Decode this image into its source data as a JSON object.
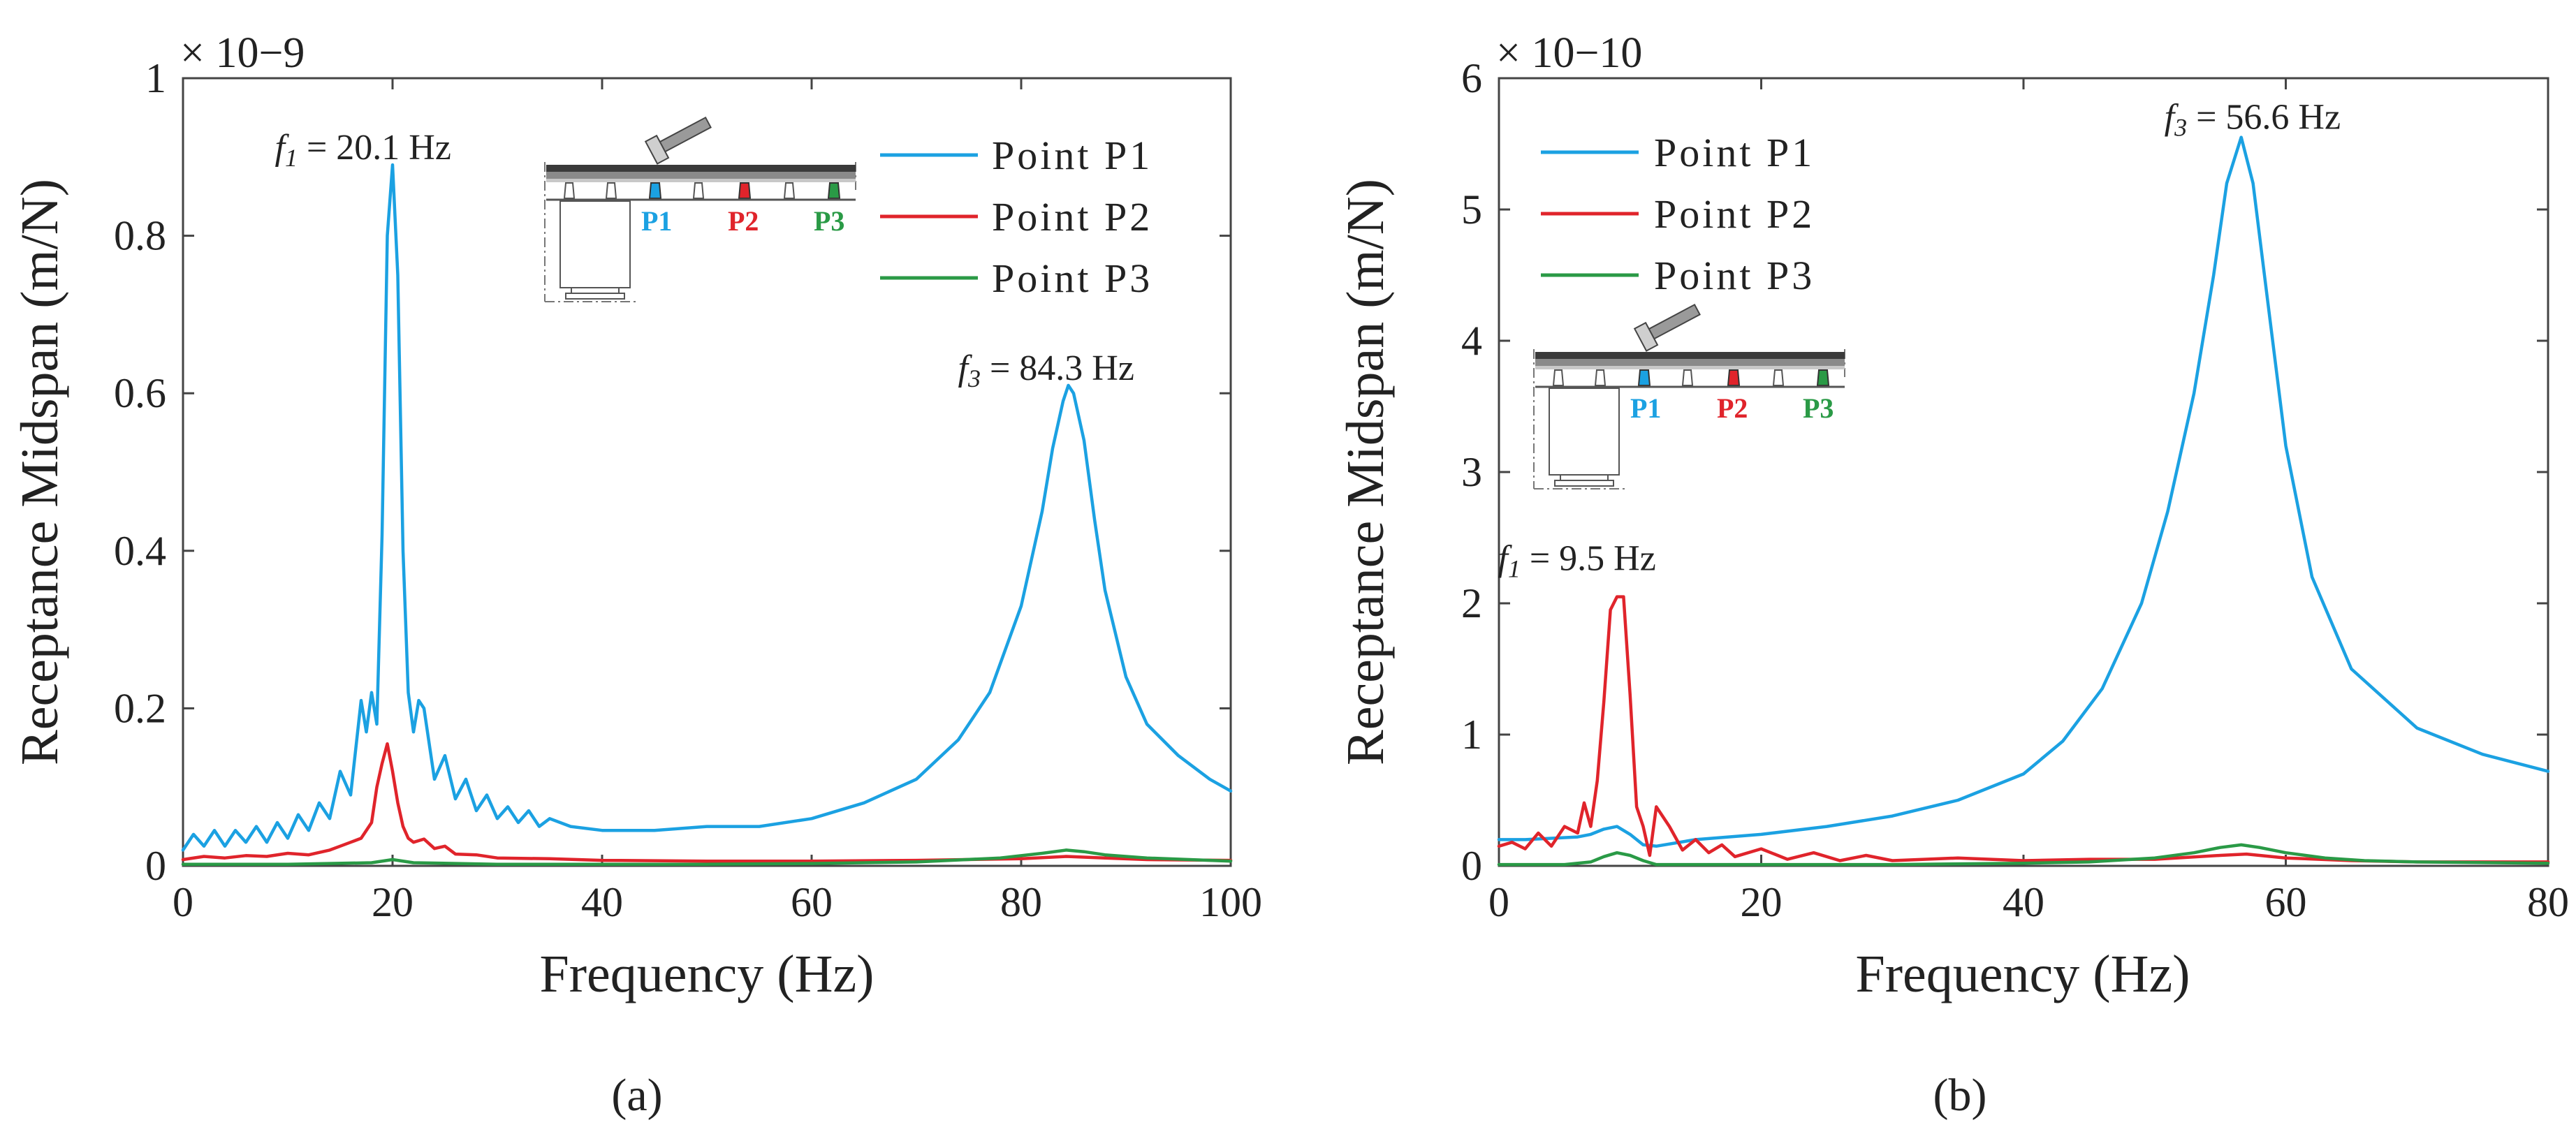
{
  "figure": {
    "panel_labels": [
      "(a)",
      "(b)"
    ]
  },
  "chart_data": [
    {
      "type": "line",
      "panel": "(a)",
      "xlabel": "Frequency (Hz)",
      "ylabel": "Receptance Midspan (m/N)",
      "scale_label": "× 10−9",
      "xlim": [
        0,
        100
      ],
      "ylim": [
        0,
        1
      ],
      "xticks": [
        0,
        20,
        40,
        60,
        80,
        100
      ],
      "yticks": [
        0,
        0.2,
        0.4,
        0.6,
        0.8,
        1
      ],
      "ytick_labels": [
        "0",
        "0.2",
        "0.4",
        "0.6",
        "0.8",
        "1"
      ],
      "legend_position": "top-right",
      "annotations": [
        {
          "symbol": "f",
          "sub": "1",
          "text": " = 20.1 Hz",
          "x": 20.1,
          "y": 0.89
        },
        {
          "symbol": "f",
          "sub": "3",
          "text": " = 84.3 Hz",
          "x": 84.3,
          "y": 0.61
        }
      ],
      "inset_labels": [
        "P1",
        "P2",
        "P3"
      ],
      "series": [
        {
          "name": "Point P1",
          "color": "#1ba1e2",
          "x": [
            0,
            1,
            2,
            3,
            4,
            5,
            6,
            7,
            8,
            9,
            10,
            11,
            12,
            13,
            14,
            15,
            16,
            17,
            17.5,
            18,
            18.5,
            19,
            19.5,
            20,
            20.5,
            21,
            21.5,
            22,
            22.5,
            23,
            24,
            25,
            26,
            27,
            28,
            29,
            30,
            31,
            32,
            33,
            34,
            35,
            37,
            40,
            45,
            50,
            55,
            60,
            65,
            70,
            74,
            77,
            80,
            82,
            83,
            84,
            84.5,
            85,
            86,
            87,
            88,
            90,
            92,
            95,
            98,
            100
          ],
          "y": [
            0.02,
            0.04,
            0.025,
            0.045,
            0.025,
            0.045,
            0.03,
            0.05,
            0.03,
            0.055,
            0.035,
            0.065,
            0.045,
            0.08,
            0.06,
            0.12,
            0.09,
            0.21,
            0.17,
            0.22,
            0.18,
            0.42,
            0.8,
            0.89,
            0.75,
            0.4,
            0.22,
            0.17,
            0.21,
            0.2,
            0.11,
            0.14,
            0.085,
            0.11,
            0.07,
            0.09,
            0.06,
            0.075,
            0.055,
            0.07,
            0.05,
            0.06,
            0.05,
            0.045,
            0.045,
            0.05,
            0.05,
            0.06,
            0.08,
            0.11,
            0.16,
            0.22,
            0.33,
            0.45,
            0.53,
            0.59,
            0.61,
            0.6,
            0.54,
            0.44,
            0.35,
            0.24,
            0.18,
            0.14,
            0.11,
            0.095
          ]
        },
        {
          "name": "Point P2",
          "color": "#e0242b",
          "x": [
            0,
            2,
            4,
            6,
            8,
            10,
            12,
            14,
            15,
            16,
            17,
            18,
            18.5,
            19,
            19.5,
            20,
            20.5,
            21,
            21.5,
            22,
            23,
            24,
            25,
            26,
            28,
            30,
            35,
            40,
            50,
            60,
            70,
            80,
            84.3,
            88,
            92,
            100
          ],
          "y": [
            0.008,
            0.012,
            0.01,
            0.013,
            0.012,
            0.016,
            0.014,
            0.02,
            0.025,
            0.03,
            0.035,
            0.055,
            0.1,
            0.13,
            0.155,
            0.12,
            0.08,
            0.05,
            0.035,
            0.03,
            0.034,
            0.022,
            0.025,
            0.015,
            0.014,
            0.01,
            0.009,
            0.007,
            0.006,
            0.006,
            0.007,
            0.009,
            0.012,
            0.01,
            0.008,
            0.007
          ]
        },
        {
          "name": "Point P3",
          "color": "#2a9a46",
          "x": [
            0,
            10,
            18,
            20,
            22,
            30,
            40,
            50,
            60,
            70,
            78,
            82,
            84.3,
            86,
            88,
            92,
            100
          ],
          "y": [
            0.002,
            0.002,
            0.004,
            0.008,
            0.004,
            0.002,
            0.002,
            0.002,
            0.003,
            0.005,
            0.01,
            0.016,
            0.02,
            0.018,
            0.014,
            0.01,
            0.006
          ]
        }
      ]
    },
    {
      "type": "line",
      "panel": "(b)",
      "xlabel": "Frequency (Hz)",
      "ylabel": "Receptance Midspan (m/N)",
      "scale_label": "× 10−10",
      "xlim": [
        0,
        80
      ],
      "ylim": [
        0,
        6
      ],
      "xticks": [
        0,
        20,
        40,
        60,
        80
      ],
      "yticks": [
        0,
        1,
        2,
        3,
        4,
        5,
        6
      ],
      "ytick_labels": [
        "0",
        "1",
        "2",
        "3",
        "4",
        "5",
        "6"
      ],
      "legend_position": "top-left",
      "annotations": [
        {
          "symbol": "f",
          "sub": "1",
          "text": " = 9.5 Hz",
          "x": 9.5,
          "y": 2.05
        },
        {
          "symbol": "f",
          "sub": "3",
          "text": " = 56.6 Hz",
          "x": 56.6,
          "y": 5.55
        }
      ],
      "inset_labels": [
        "P1",
        "P2",
        "P3"
      ],
      "series": [
        {
          "name": "Point P1",
          "color": "#1ba1e2",
          "x": [
            0,
            2,
            4,
            6,
            7,
            8,
            9,
            10,
            11,
            12,
            15,
            20,
            25,
            30,
            35,
            40,
            43,
            46,
            49,
            51,
            53,
            54.5,
            55.5,
            56.6,
            57.5,
            58.5,
            60,
            62,
            65,
            70,
            75,
            80
          ],
          "y": [
            0.2,
            0.2,
            0.21,
            0.22,
            0.24,
            0.28,
            0.3,
            0.24,
            0.16,
            0.15,
            0.2,
            0.24,
            0.3,
            0.38,
            0.5,
            0.7,
            0.95,
            1.35,
            2.0,
            2.7,
            3.6,
            4.5,
            5.2,
            5.55,
            5.2,
            4.4,
            3.2,
            2.2,
            1.5,
            1.05,
            0.85,
            0.72
          ]
        },
        {
          "name": "Point P2",
          "color": "#e0242b",
          "x": [
            0,
            1,
            2,
            3,
            4,
            5,
            6,
            6.5,
            7,
            7.5,
            8,
            8.5,
            9,
            9.5,
            10,
            10.5,
            11,
            11.5,
            12,
            13,
            14,
            15,
            16,
            17,
            18,
            20,
            22,
            24,
            26,
            28,
            30,
            35,
            40,
            45,
            50,
            55,
            57,
            60,
            65,
            70,
            80
          ],
          "y": [
            0.15,
            0.18,
            0.13,
            0.25,
            0.15,
            0.3,
            0.25,
            0.48,
            0.3,
            0.65,
            1.25,
            1.95,
            2.05,
            2.05,
            1.3,
            0.45,
            0.3,
            0.08,
            0.45,
            0.3,
            0.12,
            0.2,
            0.1,
            0.16,
            0.07,
            0.13,
            0.05,
            0.1,
            0.04,
            0.08,
            0.04,
            0.06,
            0.04,
            0.05,
            0.05,
            0.08,
            0.09,
            0.06,
            0.04,
            0.03,
            0.03
          ]
        },
        {
          "name": "Point P3",
          "color": "#2a9a46",
          "x": [
            0,
            5,
            7,
            8,
            9,
            10,
            11,
            12,
            15,
            20,
            30,
            40,
            45,
            50,
            53,
            55,
            56.6,
            58,
            60,
            63,
            66,
            70,
            80
          ],
          "y": [
            0.01,
            0.01,
            0.03,
            0.07,
            0.1,
            0.08,
            0.04,
            0.01,
            0.01,
            0.01,
            0.01,
            0.02,
            0.03,
            0.06,
            0.1,
            0.14,
            0.16,
            0.14,
            0.1,
            0.06,
            0.04,
            0.03,
            0.02
          ]
        }
      ]
    }
  ]
}
